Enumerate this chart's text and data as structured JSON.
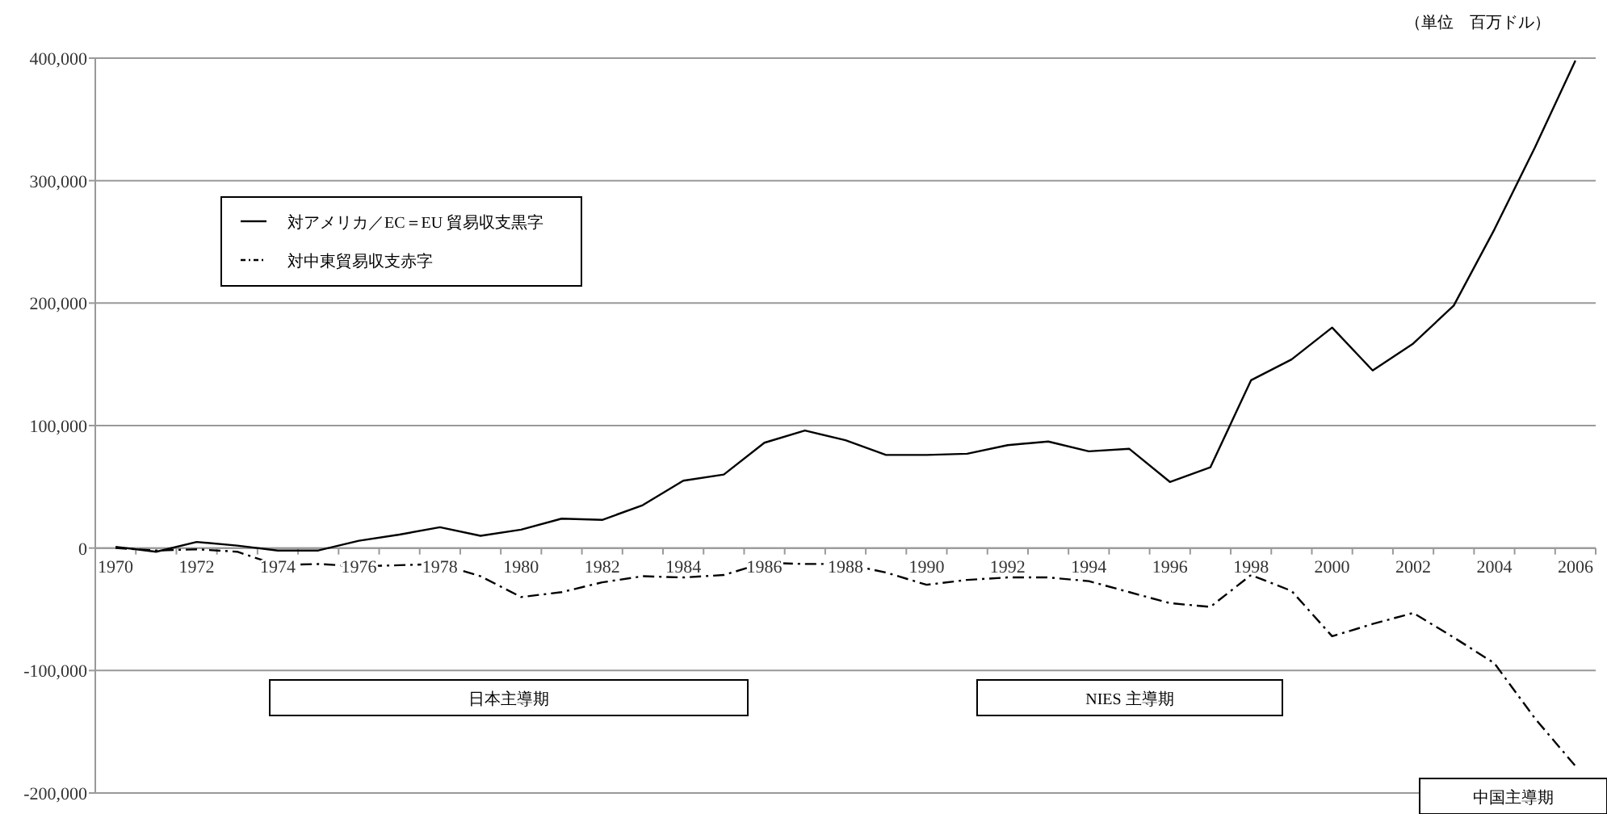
{
  "chart_data": {
    "type": "line",
    "categories": [
      "1970",
      null,
      "1972",
      null,
      "1974",
      null,
      "1976",
      null,
      "1978",
      null,
      "1980",
      null,
      "1982",
      null,
      "1984",
      null,
      "1986",
      null,
      "1988",
      null,
      "1990",
      null,
      "1992",
      null,
      "1994",
      null,
      "1996",
      null,
      "1998",
      null,
      "2000",
      null,
      "2002",
      null,
      "2004",
      null,
      "2006"
    ],
    "series": [
      {
        "name": "対アメリカ／EC＝EU 貿易収支黒字",
        "color": "#000000",
        "line_style": "solid",
        "values": [
          1000,
          -3000,
          5000,
          2000,
          -2000,
          -2000,
          6000,
          11000,
          17000,
          10000,
          15000,
          24000,
          23000,
          35000,
          55000,
          60000,
          86000,
          96000,
          88000,
          76000,
          76000,
          77000,
          84000,
          87000,
          79000,
          81000,
          54000,
          66000,
          137000,
          154000,
          180000,
          145000,
          167000,
          198000,
          260000,
          327000,
          398000
        ]
      },
      {
        "name": "対中東貿易収支赤字",
        "color": "#000000",
        "line_style": "dashed",
        "values": [
          0,
          -2000,
          -1000,
          -3000,
          -14000,
          -13000,
          -15000,
          -14000,
          -13000,
          -23000,
          -40000,
          -36000,
          -28000,
          -23000,
          -24000,
          -22000,
          -12000,
          -13000,
          -13000,
          -20000,
          -30000,
          -26000,
          -24000,
          -24000,
          -27000,
          -36000,
          -45000,
          -48000,
          -22000,
          -35000,
          -72000,
          -62000,
          -53000,
          -73000,
          -94000,
          -139000,
          -178000
        ]
      }
    ],
    "ylim": [
      -200000,
      400000
    ],
    "yticks": [
      {
        "value": -200000,
        "label": "-200,000"
      },
      {
        "value": -100000,
        "label": "-100,000"
      },
      0,
      {
        "value": 100000,
        "label": "100,000"
      },
      {
        "value": 200000,
        "label": "200,000"
      },
      {
        "value": 300000,
        "label": "300,000"
      },
      {
        "value": 400000,
        "label": "400,000"
      }
    ],
    "grid": "y",
    "legend": "top left",
    "marker": "none",
    "annotations": [
      "（単位　百万ドル）",
      "日本主導期",
      "NIES 主導期",
      "中国主導期"
    ]
  }
}
